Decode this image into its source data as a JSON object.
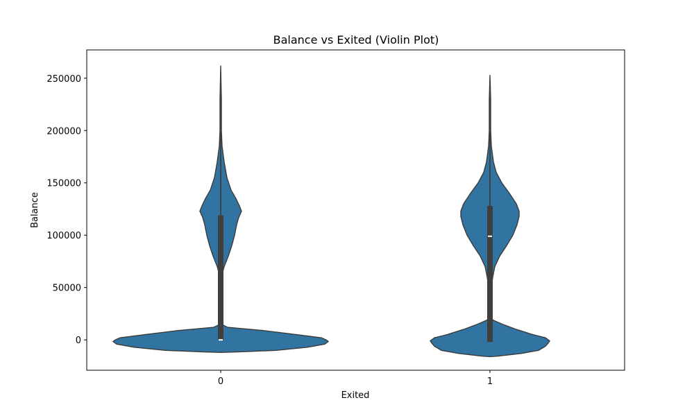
{
  "chart_data": {
    "type": "violin",
    "title": "Balance vs Exited (Violin Plot)",
    "xlabel": "Exited",
    "ylabel": "Balance",
    "categories": [
      "0",
      "1"
    ],
    "ylim": [
      -29000,
      277000
    ],
    "yticks": [
      0,
      50000,
      100000,
      150000,
      200000,
      250000
    ],
    "ytick_labels": [
      "0",
      "50000",
      "100000",
      "150000",
      "200000",
      "250000"
    ],
    "color": "#3274a1",
    "grid": false,
    "legend": "none",
    "violins": [
      {
        "category": "0",
        "density_min": -12000,
        "density_max": 262000,
        "whisker_low": 0,
        "whisker_high": 251000,
        "q1": 0,
        "q3": 119000,
        "median": 0
      },
      {
        "category": "1",
        "density_min": -16000,
        "density_max": 253000,
        "whisker_low": -2000,
        "whisker_high": 239000,
        "q1": -2000,
        "q3": 128000,
        "median": 99000
      }
    ]
  }
}
